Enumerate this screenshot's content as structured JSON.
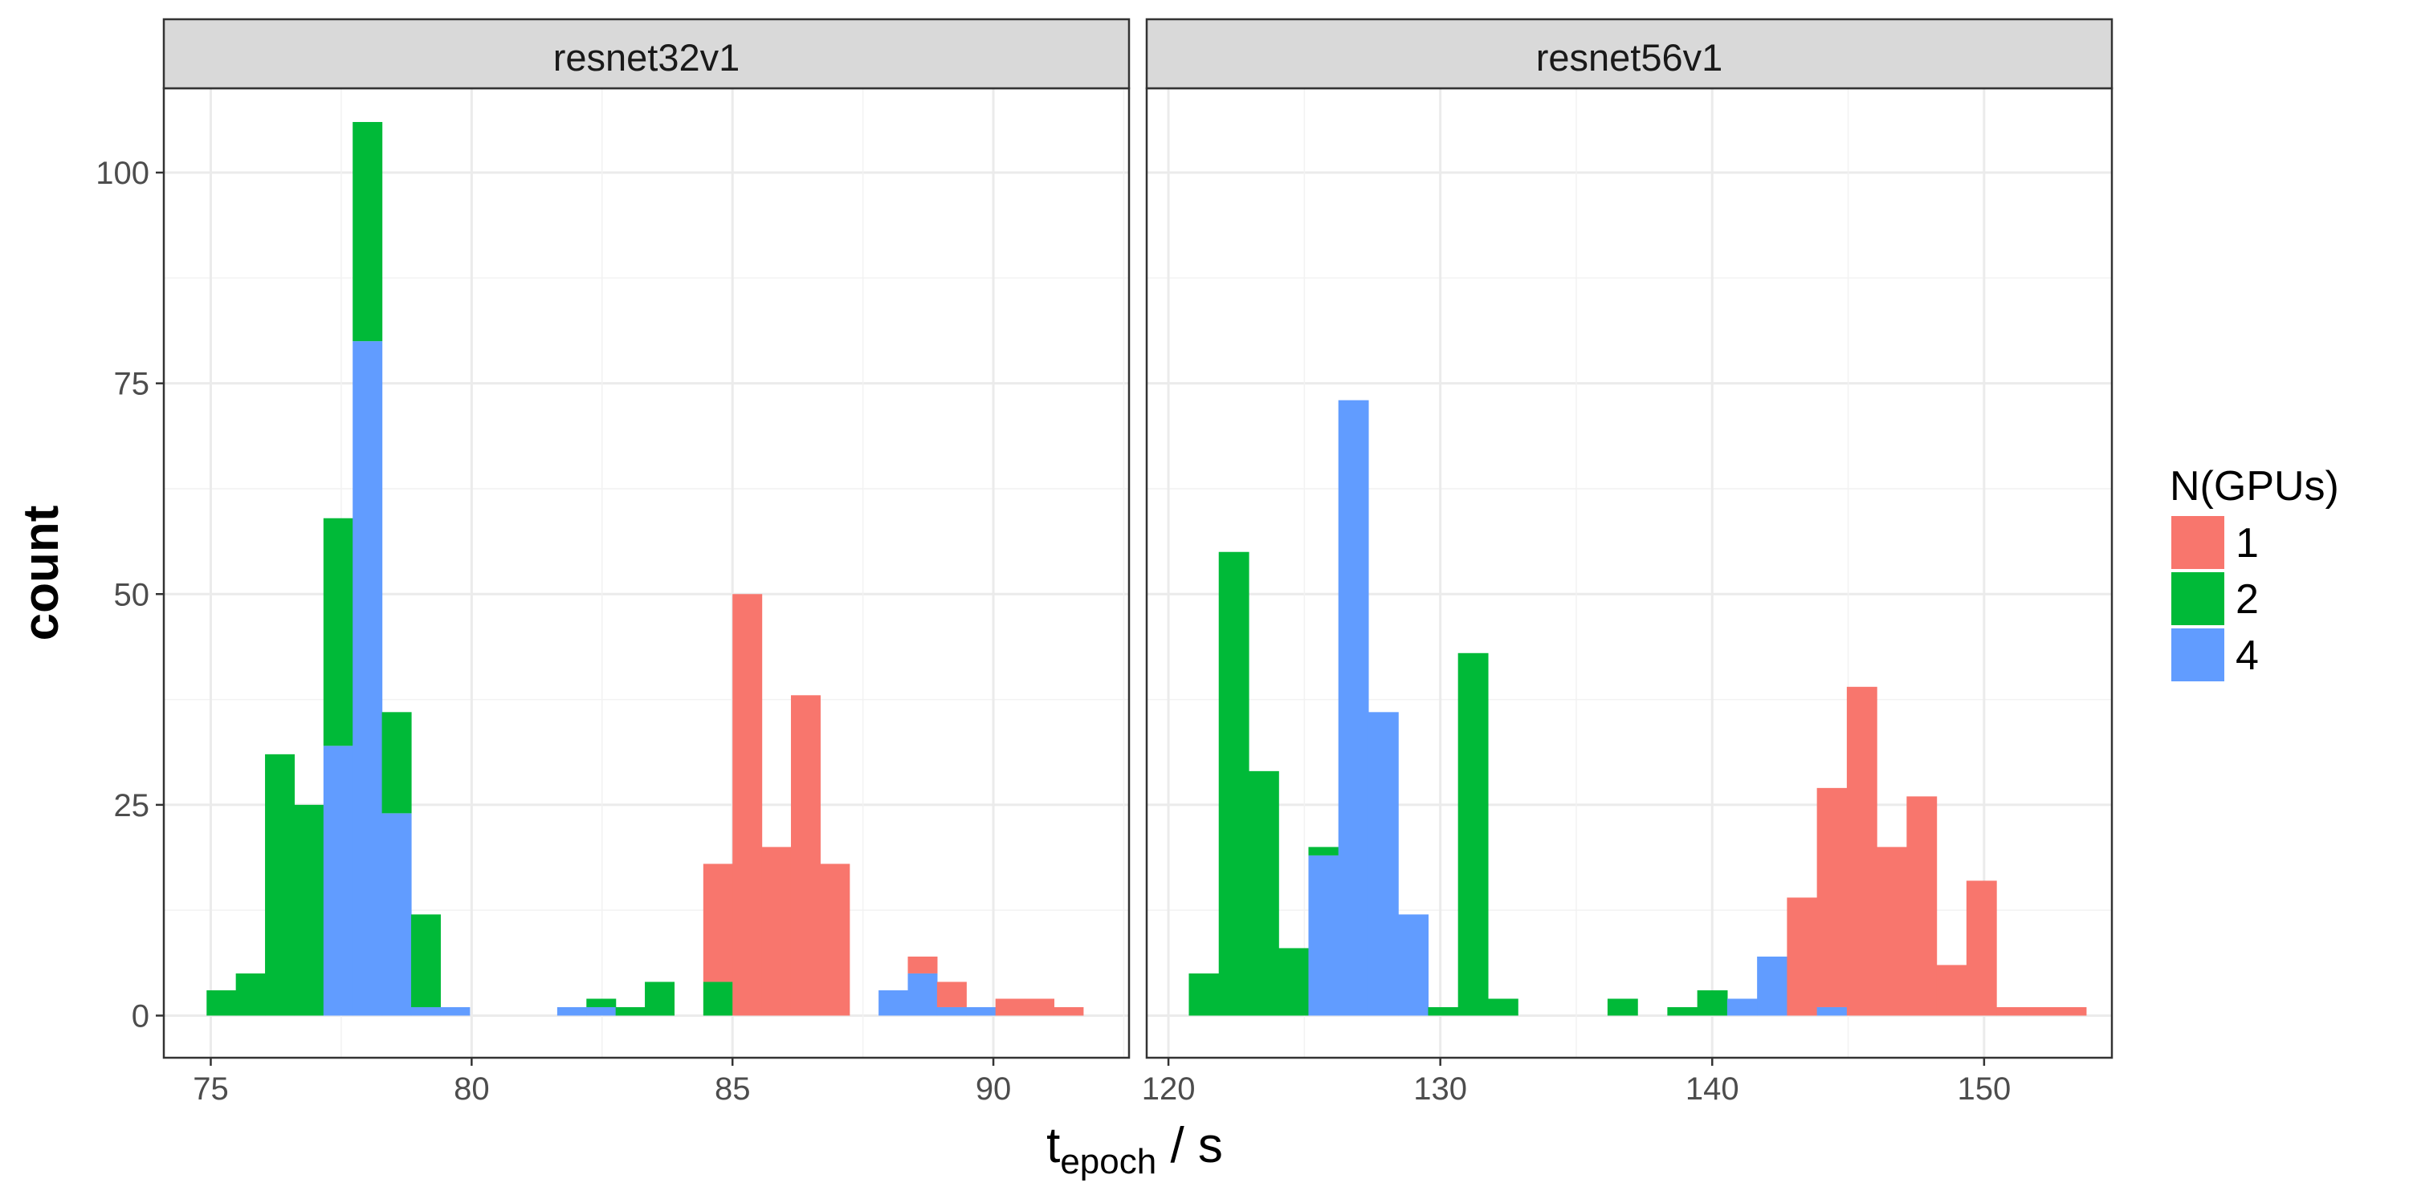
{
  "chart_data": {
    "type": "bar",
    "subtype": "stacked-histogram",
    "colors": {
      "1": "#F8766D",
      "2": "#00BA38",
      "4": "#619CFF"
    },
    "grid": true,
    "legend_position": "right",
    "xlabel": {
      "main": "t",
      "sub": "epoch",
      "rest": " / s"
    },
    "ylabel": "count",
    "ylim": [
      -5,
      110
    ],
    "yticks": [
      0,
      25,
      50,
      75,
      100
    ],
    "legend": {
      "title": "N(GPUs)",
      "items": [
        {
          "key": "1",
          "label": "1"
        },
        {
          "key": "2",
          "label": "2"
        },
        {
          "key": "4",
          "label": "4"
        }
      ]
    },
    "panels": [
      {
        "title": "resnet32v1",
        "xlim": [
          74.1,
          92.6
        ],
        "xticks": [
          75,
          80,
          85,
          90
        ],
        "bin_width": 0.56,
        "bins": [
          {
            "x": 75.2,
            "counts": {
              "1": 0,
              "2": 3,
              "4": 0
            }
          },
          {
            "x": 75.76,
            "counts": {
              "1": 0,
              "2": 5,
              "4": 0
            }
          },
          {
            "x": 76.32,
            "counts": {
              "1": 0,
              "2": 31,
              "4": 0
            }
          },
          {
            "x": 76.88,
            "counts": {
              "1": 0,
              "2": 25,
              "4": 0
            }
          },
          {
            "x": 77.44,
            "counts": {
              "1": 0,
              "2": 27,
              "4": 32
            }
          },
          {
            "x": 78.0,
            "counts": {
              "1": 0,
              "2": 26,
              "4": 80
            }
          },
          {
            "x": 78.56,
            "counts": {
              "1": 0,
              "2": 12,
              "4": 24
            }
          },
          {
            "x": 79.12,
            "counts": {
              "1": 0,
              "2": 11,
              "4": 1
            }
          },
          {
            "x": 79.68,
            "counts": {
              "1": 0,
              "2": 0,
              "4": 1
            }
          },
          {
            "x": 81.92,
            "counts": {
              "1": 0,
              "2": 0,
              "4": 1
            }
          },
          {
            "x": 82.48,
            "counts": {
              "1": 0,
              "2": 1,
              "4": 1
            }
          },
          {
            "x": 83.04,
            "counts": {
              "1": 0,
              "2": 1,
              "4": 0
            }
          },
          {
            "x": 83.6,
            "counts": {
              "1": 0,
              "2": 4,
              "4": 0
            }
          },
          {
            "x": 84.72,
            "counts": {
              "1": 14,
              "2": 4,
              "4": 0
            }
          },
          {
            "x": 85.28,
            "counts": {
              "1": 50,
              "2": 0,
              "4": 0
            }
          },
          {
            "x": 85.84,
            "counts": {
              "1": 20,
              "2": 0,
              "4": 0
            }
          },
          {
            "x": 86.4,
            "counts": {
              "1": 38,
              "2": 0,
              "4": 0
            }
          },
          {
            "x": 86.96,
            "counts": {
              "1": 18,
              "2": 0,
              "4": 0
            }
          },
          {
            "x": 88.08,
            "counts": {
              "1": 0,
              "2": 0,
              "4": 3
            }
          },
          {
            "x": 88.64,
            "counts": {
              "1": 2,
              "2": 0,
              "4": 5
            }
          },
          {
            "x": 89.2,
            "counts": {
              "1": 3,
              "2": 0,
              "4": 1
            }
          },
          {
            "x": 89.76,
            "counts": {
              "1": 0,
              "2": 0,
              "4": 1
            }
          },
          {
            "x": 90.32,
            "counts": {
              "1": 2,
              "2": 0,
              "4": 0
            }
          },
          {
            "x": 90.88,
            "counts": {
              "1": 2,
              "2": 0,
              "4": 0
            }
          },
          {
            "x": 91.44,
            "counts": {
              "1": 1,
              "2": 0,
              "4": 0
            }
          }
        ]
      },
      {
        "title": "resnet56v1",
        "xlim": [
          119.2,
          154.7
        ],
        "xticks": [
          120,
          130,
          140,
          150
        ],
        "bin_width": 1.1,
        "bins": [
          {
            "x": 121.3,
            "counts": {
              "1": 0,
              "2": 5,
              "4": 0
            }
          },
          {
            "x": 122.4,
            "counts": {
              "1": 0,
              "2": 55,
              "4": 0
            }
          },
          {
            "x": 123.5,
            "counts": {
              "1": 0,
              "2": 29,
              "4": 0
            }
          },
          {
            "x": 124.6,
            "counts": {
              "1": 0,
              "2": 8,
              "4": 0
            }
          },
          {
            "x": 125.7,
            "counts": {
              "1": 0,
              "2": 1,
              "4": 19
            }
          },
          {
            "x": 126.8,
            "counts": {
              "1": 0,
              "2": 0,
              "4": 73
            }
          },
          {
            "x": 127.9,
            "counts": {
              "1": 0,
              "2": 0,
              "4": 36
            }
          },
          {
            "x": 129.0,
            "counts": {
              "1": 0,
              "2": 0,
              "4": 12
            }
          },
          {
            "x": 130.1,
            "counts": {
              "1": 0,
              "2": 1,
              "4": 0
            }
          },
          {
            "x": 131.2,
            "counts": {
              "1": 0,
              "2": 43,
              "4": 0
            }
          },
          {
            "x": 132.3,
            "counts": {
              "1": 0,
              "2": 2,
              "4": 0
            }
          },
          {
            "x": 136.7,
            "counts": {
              "1": 0,
              "2": 2,
              "4": 0
            }
          },
          {
            "x": 138.9,
            "counts": {
              "1": 0,
              "2": 1,
              "4": 0
            }
          },
          {
            "x": 140.0,
            "counts": {
              "1": 0,
              "2": 3,
              "4": 0
            }
          },
          {
            "x": 141.1,
            "counts": {
              "1": 0,
              "2": 0,
              "4": 2
            }
          },
          {
            "x": 142.2,
            "counts": {
              "1": 0,
              "2": 0,
              "4": 7
            }
          },
          {
            "x": 143.3,
            "counts": {
              "1": 14,
              "2": 0,
              "4": 0
            }
          },
          {
            "x": 144.4,
            "counts": {
              "1": 26,
              "2": 0,
              "4": 1
            }
          },
          {
            "x": 145.5,
            "counts": {
              "1": 39,
              "2": 0,
              "4": 0
            }
          },
          {
            "x": 146.6,
            "counts": {
              "1": 20,
              "2": 0,
              "4": 0
            }
          },
          {
            "x": 147.7,
            "counts": {
              "1": 26,
              "2": 0,
              "4": 0
            }
          },
          {
            "x": 148.8,
            "counts": {
              "1": 6,
              "2": 0,
              "4": 0
            }
          },
          {
            "x": 149.9,
            "counts": {
              "1": 16,
              "2": 0,
              "4": 0
            }
          },
          {
            "x": 151.0,
            "counts": {
              "1": 1,
              "2": 0,
              "4": 0
            }
          },
          {
            "x": 152.1,
            "counts": {
              "1": 1,
              "2": 0,
              "4": 0
            }
          },
          {
            "x": 153.2,
            "counts": {
              "1": 1,
              "2": 0,
              "4": 0
            }
          }
        ]
      }
    ]
  }
}
